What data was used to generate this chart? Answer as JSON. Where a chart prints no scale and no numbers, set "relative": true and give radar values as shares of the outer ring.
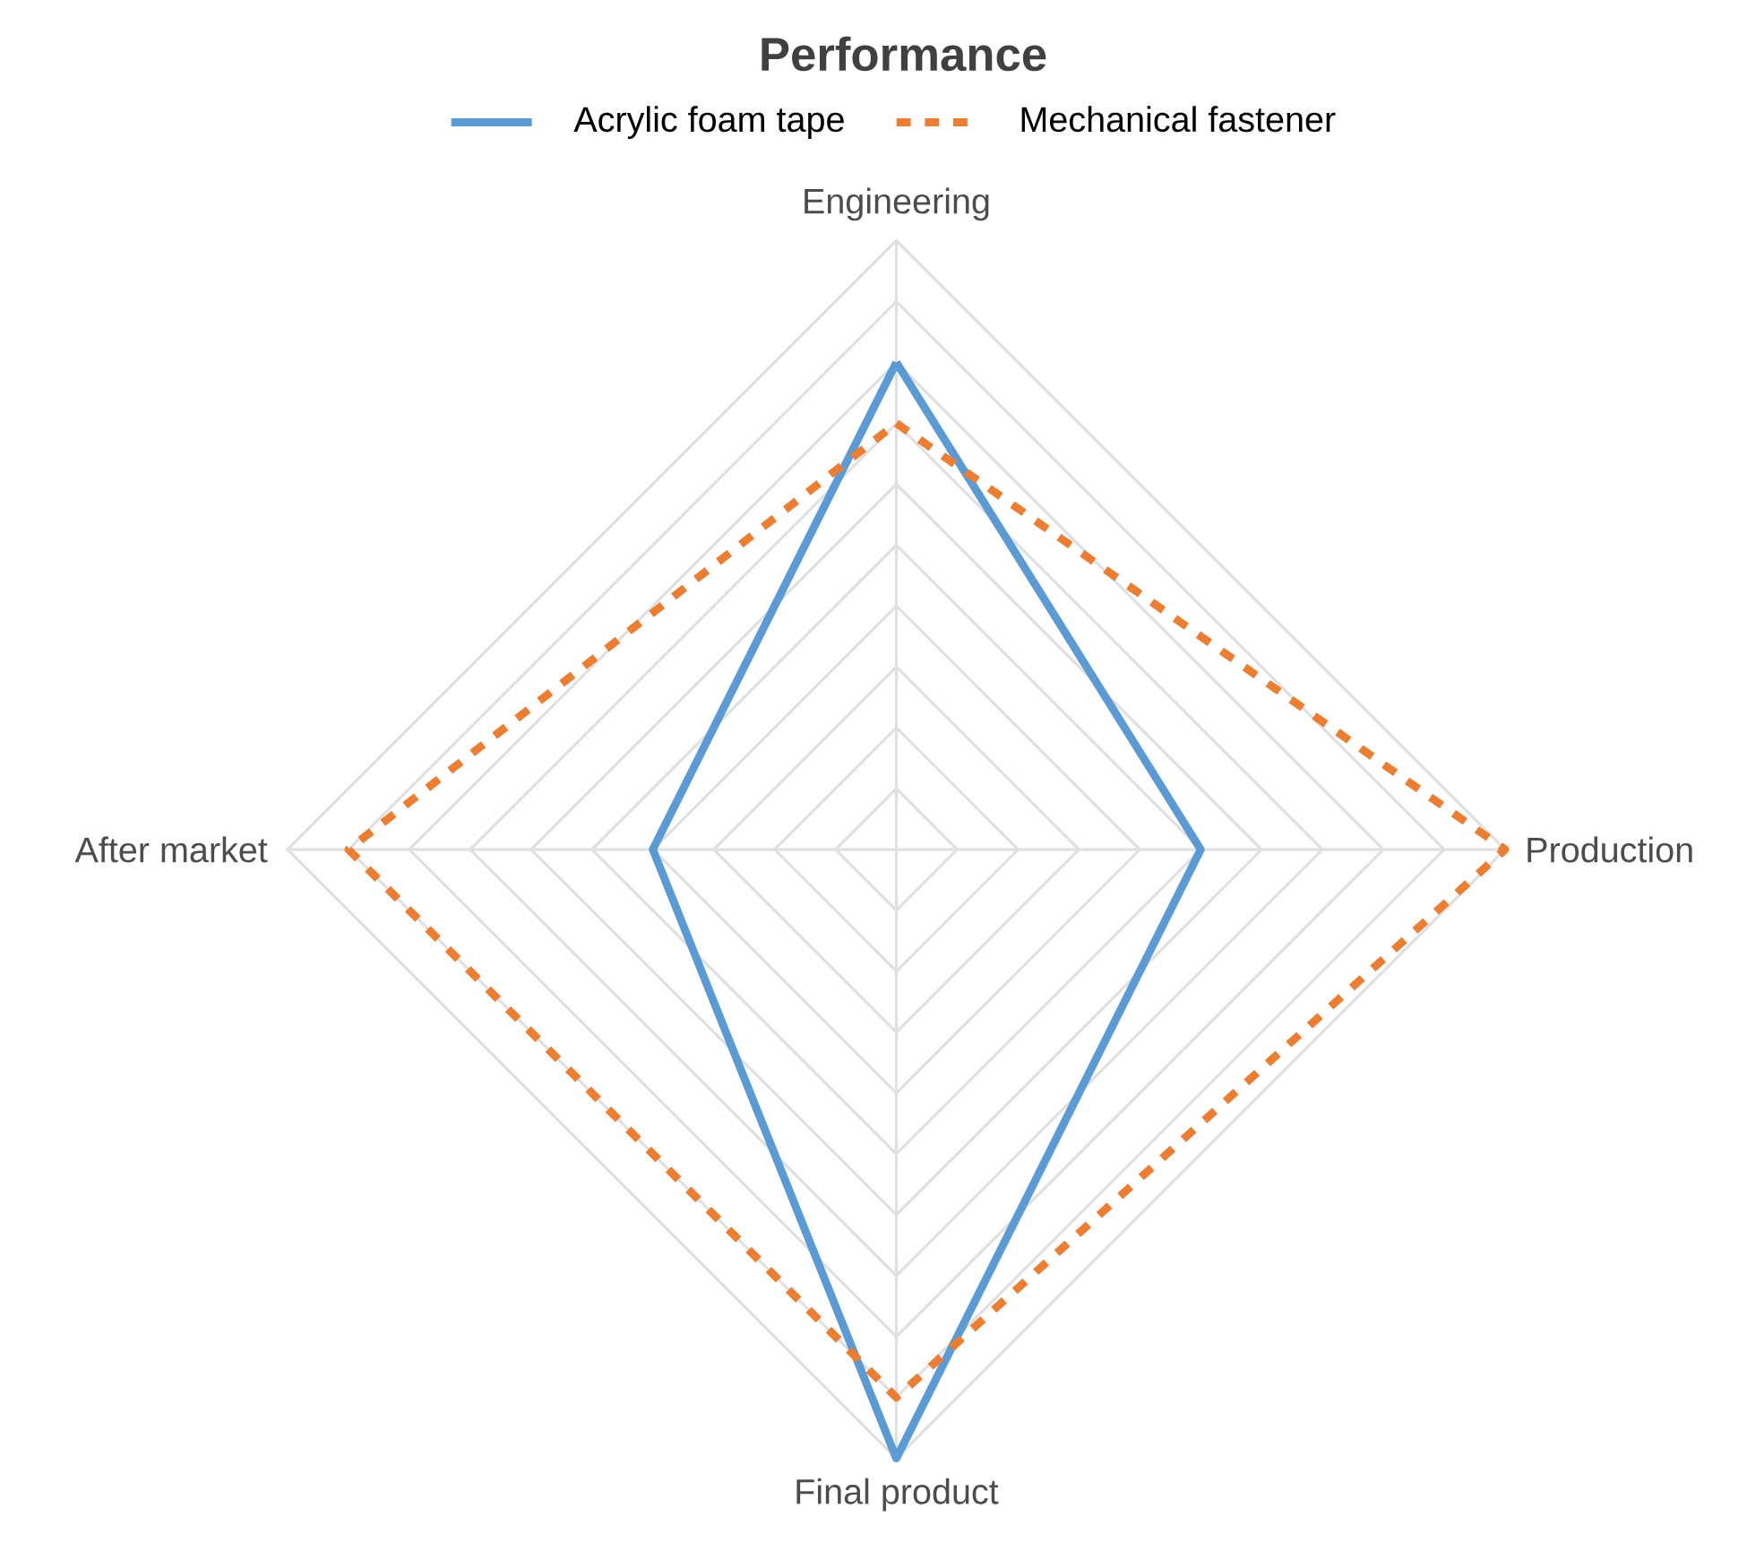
{
  "chart_data": {
    "type": "radar",
    "title": "Performance",
    "categories": [
      "Engineering",
      "Production",
      "Final product",
      "After market"
    ],
    "series": [
      {
        "name": "Acrylic foam tape",
        "color": "#5b9bd5",
        "line_style": "solid",
        "values": [
          0.8,
          0.5,
          1.0,
          0.4
        ]
      },
      {
        "name": "Mechanical fastener",
        "color": "#ed7d31",
        "line_style": "dashed",
        "values": [
          0.7,
          1.0,
          0.9,
          0.9
        ]
      }
    ],
    "relative": true,
    "legend": "top",
    "grid": true
  }
}
